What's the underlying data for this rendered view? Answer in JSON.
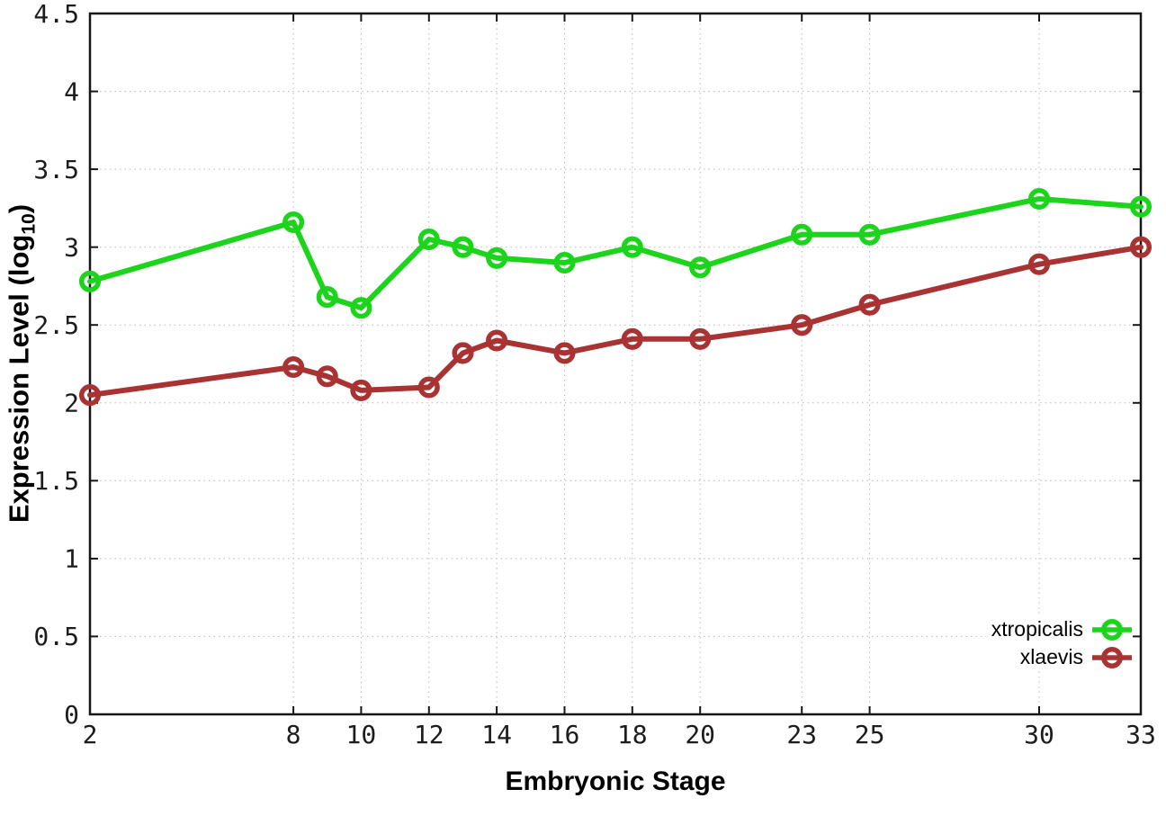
{
  "chart_data": {
    "type": "line",
    "title": "",
    "xlabel": "Embryonic Stage",
    "ylabel": "Expression Level (log10)",
    "ylabel_parts": {
      "main": "Expression Level (log",
      "subscript": "10",
      "suffix": ")"
    },
    "xlim": [
      2,
      33
    ],
    "ylim": [
      0,
      4.5
    ],
    "xticks": [
      2,
      8,
      10,
      12,
      14,
      16,
      18,
      20,
      23,
      25,
      30,
      33
    ],
    "yticks": [
      0,
      0.5,
      1,
      1.5,
      2,
      2.5,
      3,
      3.5,
      4,
      4.5
    ],
    "grid": true,
    "grid_style": "dotted",
    "legend_position": "bottom-right-inside",
    "background": "#ffffff",
    "axis_color": "#161616",
    "series": [
      {
        "name": "xtropicalis",
        "color": "#1bd41b",
        "marker": "open-circle",
        "x": [
          2,
          8,
          9,
          10,
          12,
          13,
          14,
          16,
          18,
          20,
          23,
          25,
          30,
          33
        ],
        "y": [
          2.78,
          3.16,
          2.68,
          2.61,
          3.05,
          3.0,
          2.93,
          2.9,
          3.0,
          2.87,
          3.08,
          3.08,
          3.31,
          3.26
        ]
      },
      {
        "name": "xlaevis",
        "color": "#a93333",
        "marker": "open-circle",
        "x": [
          2,
          8,
          9,
          10,
          12,
          13,
          14,
          16,
          18,
          20,
          23,
          25,
          30,
          33
        ],
        "y": [
          2.05,
          2.23,
          2.17,
          2.08,
          2.1,
          2.32,
          2.4,
          2.32,
          2.41,
          2.41,
          2.5,
          2.63,
          2.89,
          3.0
        ]
      }
    ]
  }
}
